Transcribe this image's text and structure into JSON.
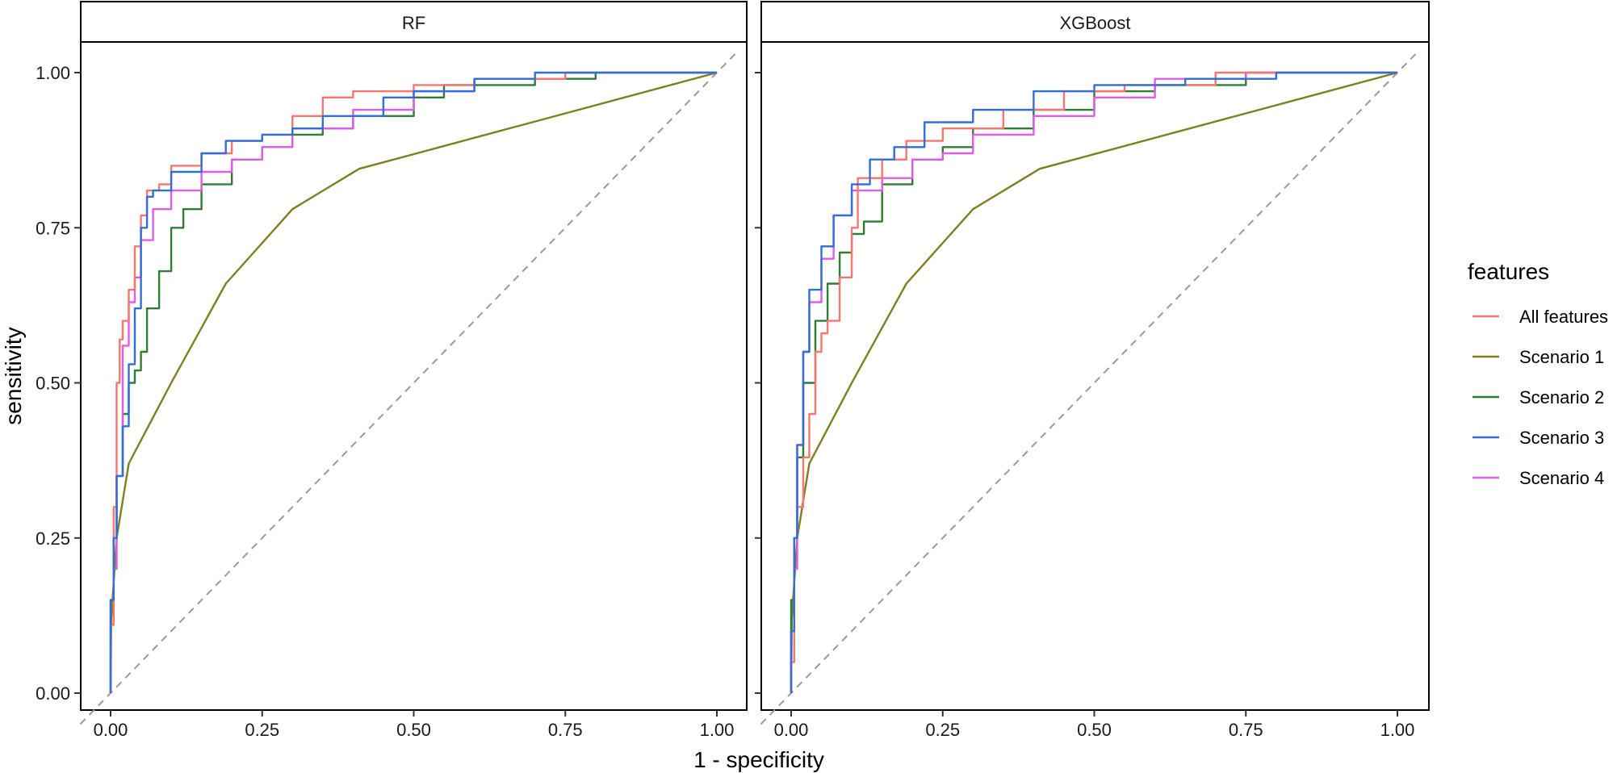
{
  "chart_data": {
    "type": "line",
    "xlabel": "1 - specificity",
    "ylabel": "sensitivity",
    "xlim": [
      0,
      1
    ],
    "ylim": [
      0,
      1
    ],
    "x_ticks": [
      "0.00",
      "0.25",
      "0.50",
      "0.75",
      "1.00"
    ],
    "y_ticks": [
      "0.00",
      "0.25",
      "0.50",
      "0.75",
      "1.00"
    ],
    "legend": {
      "title": "features",
      "placement": "right",
      "entries": [
        {
          "name": "All features",
          "color": "#F8766D"
        },
        {
          "name": "Scenario 1",
          "color": "#7F7F1F"
        },
        {
          "name": "Scenario 2",
          "color": "#2E7D32"
        },
        {
          "name": "Scenario 3",
          "color": "#2F6FD6"
        },
        {
          "name": "Scenario 4",
          "color": "#E05BE8"
        }
      ]
    },
    "reference_line": {
      "name": "chance",
      "color": "#9a9a9a",
      "points": [
        [
          0,
          0
        ],
        [
          1,
          1
        ]
      ]
    },
    "panels": [
      {
        "title": "RF",
        "series": [
          {
            "name": "All features",
            "color": "#F8766D",
            "points": [
              [
                0,
                0
              ],
              [
                0.005,
                0.11
              ],
              [
                0.01,
                0.3
              ],
              [
                0.015,
                0.5
              ],
              [
                0.02,
                0.57
              ],
              [
                0.03,
                0.6
              ],
              [
                0.04,
                0.65
              ],
              [
                0.05,
                0.72
              ],
              [
                0.06,
                0.77
              ],
              [
                0.08,
                0.81
              ],
              [
                0.1,
                0.82
              ],
              [
                0.15,
                0.85
              ],
              [
                0.2,
                0.87
              ],
              [
                0.25,
                0.89
              ],
              [
                0.3,
                0.9
              ],
              [
                0.35,
                0.93
              ],
              [
                0.4,
                0.96
              ],
              [
                0.5,
                0.97
              ],
              [
                0.6,
                0.98
              ],
              [
                0.75,
                0.99
              ],
              [
                1,
                1
              ]
            ]
          },
          {
            "name": "Scenario 1",
            "color": "#7F7F1F",
            "points": [
              [
                0,
                0
              ],
              [
                0.001,
                0.12
              ],
              [
                0.01,
                0.25
              ],
              [
                0.03,
                0.37
              ],
              [
                0.1,
                0.5
              ],
              [
                0.19,
                0.66
              ],
              [
                0.3,
                0.78
              ],
              [
                0.41,
                0.845
              ],
              [
                1,
                1
              ]
            ]
          },
          {
            "name": "Scenario 2",
            "color": "#2E7D32",
            "points": [
              [
                0,
                0
              ],
              [
                0.005,
                0.15
              ],
              [
                0.01,
                0.25
              ],
              [
                0.02,
                0.35
              ],
              [
                0.03,
                0.45
              ],
              [
                0.04,
                0.5
              ],
              [
                0.05,
                0.52
              ],
              [
                0.06,
                0.55
              ],
              [
                0.08,
                0.62
              ],
              [
                0.1,
                0.68
              ],
              [
                0.12,
                0.75
              ],
              [
                0.15,
                0.78
              ],
              [
                0.2,
                0.82
              ],
              [
                0.25,
                0.86
              ],
              [
                0.3,
                0.88
              ],
              [
                0.35,
                0.9
              ],
              [
                0.4,
                0.91
              ],
              [
                0.5,
                0.93
              ],
              [
                0.55,
                0.96
              ],
              [
                0.7,
                0.98
              ],
              [
                0.8,
                0.99
              ],
              [
                1,
                1
              ]
            ]
          },
          {
            "name": "Scenario 3",
            "color": "#2F6FD6",
            "points": [
              [
                0,
                0
              ],
              [
                0.005,
                0.15
              ],
              [
                0.01,
                0.25
              ],
              [
                0.02,
                0.35
              ],
              [
                0.03,
                0.43
              ],
              [
                0.04,
                0.53
              ],
              [
                0.05,
                0.62
              ],
              [
                0.06,
                0.75
              ],
              [
                0.07,
                0.8
              ],
              [
                0.1,
                0.81
              ],
              [
                0.15,
                0.84
              ],
              [
                0.19,
                0.87
              ],
              [
                0.25,
                0.89
              ],
              [
                0.3,
                0.9
              ],
              [
                0.35,
                0.91
              ],
              [
                0.45,
                0.93
              ],
              [
                0.5,
                0.96
              ],
              [
                0.6,
                0.97
              ],
              [
                0.7,
                0.99
              ],
              [
                1,
                1
              ]
            ]
          },
          {
            "name": "Scenario 4",
            "color": "#E05BE8",
            "points": [
              [
                0,
                0
              ],
              [
                0.005,
                0.11
              ],
              [
                0.01,
                0.2
              ],
              [
                0.02,
                0.35
              ],
              [
                0.03,
                0.56
              ],
              [
                0.04,
                0.63
              ],
              [
                0.05,
                0.67
              ],
              [
                0.07,
                0.73
              ],
              [
                0.1,
                0.78
              ],
              [
                0.15,
                0.81
              ],
              [
                0.2,
                0.84
              ],
              [
                0.25,
                0.86
              ],
              [
                0.3,
                0.88
              ],
              [
                0.4,
                0.91
              ],
              [
                0.5,
                0.94
              ],
              [
                0.6,
                0.97
              ],
              [
                0.75,
                0.99
              ],
              [
                1,
                1
              ]
            ]
          }
        ]
      },
      {
        "title": "XGBoost",
        "series": [
          {
            "name": "All features",
            "color": "#F8766D",
            "points": [
              [
                0,
                0
              ],
              [
                0.005,
                0.05
              ],
              [
                0.01,
                0.25
              ],
              [
                0.02,
                0.3
              ],
              [
                0.03,
                0.38
              ],
              [
                0.04,
                0.45
              ],
              [
                0.05,
                0.55
              ],
              [
                0.06,
                0.58
              ],
              [
                0.08,
                0.6
              ],
              [
                0.1,
                0.67
              ],
              [
                0.11,
                0.75
              ],
              [
                0.15,
                0.83
              ],
              [
                0.19,
                0.86
              ],
              [
                0.25,
                0.89
              ],
              [
                0.35,
                0.91
              ],
              [
                0.45,
                0.94
              ],
              [
                0.55,
                0.97
              ],
              [
                0.7,
                0.98
              ],
              [
                1,
                1
              ]
            ]
          },
          {
            "name": "Scenario 1",
            "color": "#7F7F1F",
            "points": [
              [
                0,
                0
              ],
              [
                0.001,
                0.12
              ],
              [
                0.01,
                0.25
              ],
              [
                0.03,
                0.37
              ],
              [
                0.1,
                0.5
              ],
              [
                0.19,
                0.66
              ],
              [
                0.3,
                0.78
              ],
              [
                0.41,
                0.845
              ],
              [
                1,
                1
              ]
            ]
          },
          {
            "name": "Scenario 2",
            "color": "#2E7D32",
            "points": [
              [
                0,
                0
              ],
              [
                0.005,
                0.15
              ],
              [
                0.01,
                0.25
              ],
              [
                0.02,
                0.38
              ],
              [
                0.04,
                0.5
              ],
              [
                0.06,
                0.6
              ],
              [
                0.08,
                0.66
              ],
              [
                0.1,
                0.71
              ],
              [
                0.12,
                0.74
              ],
              [
                0.15,
                0.76
              ],
              [
                0.2,
                0.82
              ],
              [
                0.25,
                0.86
              ],
              [
                0.3,
                0.88
              ],
              [
                0.4,
                0.91
              ],
              [
                0.5,
                0.94
              ],
              [
                0.6,
                0.97
              ],
              [
                0.75,
                0.98
              ],
              [
                1,
                1
              ]
            ]
          },
          {
            "name": "Scenario 3",
            "color": "#2F6FD6",
            "points": [
              [
                0,
                0
              ],
              [
                0.005,
                0.1
              ],
              [
                0.01,
                0.25
              ],
              [
                0.02,
                0.4
              ],
              [
                0.03,
                0.55
              ],
              [
                0.05,
                0.65
              ],
              [
                0.07,
                0.72
              ],
              [
                0.1,
                0.77
              ],
              [
                0.13,
                0.82
              ],
              [
                0.17,
                0.86
              ],
              [
                0.22,
                0.88
              ],
              [
                0.3,
                0.92
              ],
              [
                0.4,
                0.94
              ],
              [
                0.5,
                0.97
              ],
              [
                0.65,
                0.98
              ],
              [
                0.8,
                0.99
              ],
              [
                1,
                1
              ]
            ]
          },
          {
            "name": "Scenario 4",
            "color": "#E05BE8",
            "points": [
              [
                0,
                0
              ],
              [
                0.005,
                0.1
              ],
              [
                0.01,
                0.2
              ],
              [
                0.02,
                0.4
              ],
              [
                0.03,
                0.55
              ],
              [
                0.05,
                0.63
              ],
              [
                0.07,
                0.7
              ],
              [
                0.1,
                0.77
              ],
              [
                0.15,
                0.81
              ],
              [
                0.2,
                0.83
              ],
              [
                0.25,
                0.86
              ],
              [
                0.3,
                0.87
              ],
              [
                0.4,
                0.9
              ],
              [
                0.5,
                0.93
              ],
              [
                0.6,
                0.96
              ],
              [
                0.75,
                0.99
              ],
              [
                1,
                1
              ]
            ]
          }
        ]
      }
    ]
  }
}
